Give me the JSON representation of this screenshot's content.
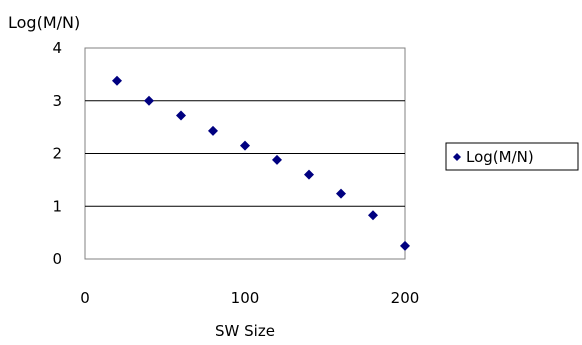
{
  "chart_data": {
    "type": "scatter",
    "title": "Log(M/N)",
    "xlabel": "SW Size",
    "ylabel": "",
    "xlim": [
      0,
      200
    ],
    "ylim": [
      0,
      4
    ],
    "xticks": [
      "0",
      "100",
      "200"
    ],
    "yticks": [
      "0",
      "1",
      "2",
      "3",
      "4"
    ],
    "grid": "horizontal",
    "legend": "right",
    "series": [
      {
        "name": "Log(M/N)",
        "color": "#000080",
        "marker": "diamond",
        "x": [
          20,
          40,
          60,
          80,
          100,
          120,
          140,
          160,
          180,
          200
        ],
        "y": [
          3.38,
          3.0,
          2.72,
          2.43,
          2.15,
          1.88,
          1.6,
          1.24,
          0.83,
          0.25
        ]
      }
    ]
  }
}
